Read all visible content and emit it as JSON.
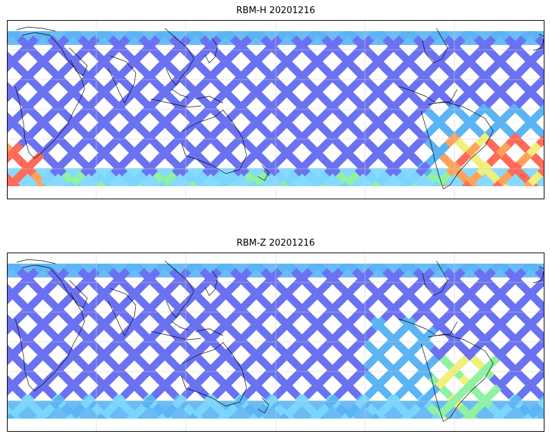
{
  "panels": [
    {
      "title": "RBM-H 20201216",
      "variant": "high"
    },
    {
      "title": "RBM-Z 20201216",
      "variant": "low"
    }
  ],
  "colors": {
    "swath_base": "#6a72f2",
    "swath_mid": "#5bb4f4",
    "swath_light": "#7ad6ff",
    "swath_green": "#8ef2a2",
    "swath_yellow": "#f2f07a",
    "swath_orange": "#ffa35a",
    "swath_red": "#ff6a5a",
    "coast": "#000000",
    "grid": "#d0d0d0",
    "frame": "#000000"
  }
}
